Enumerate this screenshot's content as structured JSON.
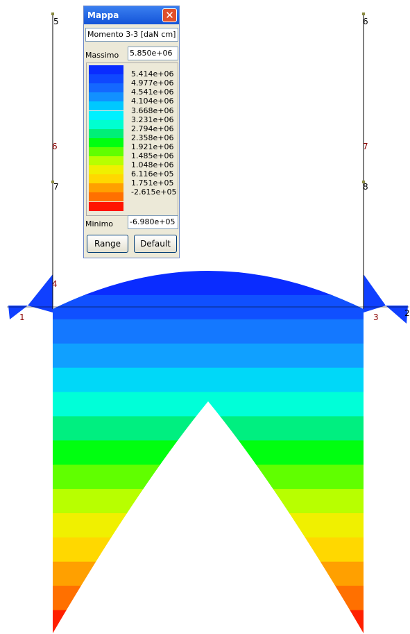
{
  "window": {
    "title": "Mappa",
    "quantity": "Momento 3-3 [daN cm]",
    "max_label": "Massimo",
    "max_value": "5.850e+06",
    "scale": [
      "5.414e+06",
      "4.977e+06",
      "4.541e+06",
      "4.104e+06",
      "3.668e+06",
      "3.231e+06",
      "2.794e+06",
      "2.358e+06",
      "1.921e+06",
      "1.485e+06",
      "1.048e+06",
      "6.116e+05",
      "1.751e+05",
      "-2.615e+05"
    ],
    "min_label": "Minimo",
    "min_value": "-6.980e+05",
    "buttons": [
      "Range",
      "Default"
    ]
  },
  "nodes": [
    "5",
    "6",
    "6",
    "7",
    "7",
    "8",
    "4",
    "1",
    "3",
    "2"
  ]
}
